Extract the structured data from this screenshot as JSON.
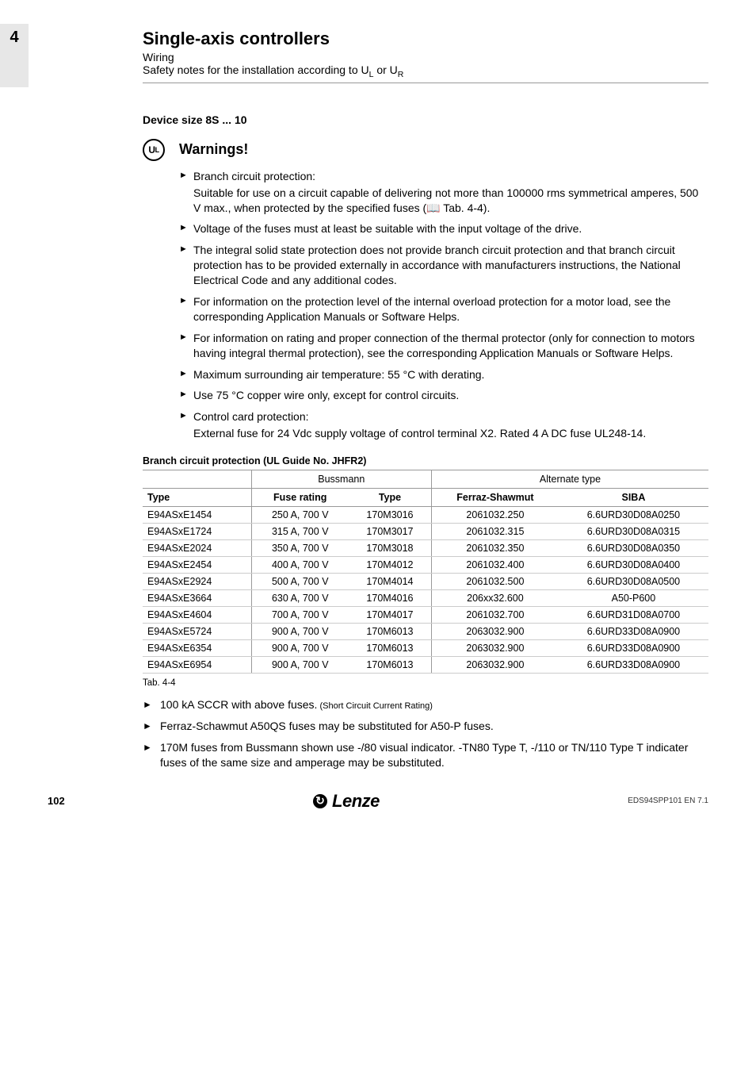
{
  "chapter_number": "4",
  "header": {
    "title": "Single-axis controllers",
    "sub1": "Wiring",
    "sub2_prefix": "Safety notes for the installation according to U",
    "sub2_sub1": "L",
    "sub2_mid": " or U",
    "sub2_sub2": "R"
  },
  "device_size": "Device size 8S ... 10",
  "ul_badge": "UL",
  "warnings_title": "Warnings!",
  "bullets": [
    {
      "text": "Branch circuit protection:",
      "sub": "Suitable for use on a circuit capable of delivering not more than 100000 rms symmetrical amperes, 500 V max., when protected by the specified fuses (📖 Tab. 4-4)."
    },
    {
      "text": "Voltage of the fuses must at least be suitable with the input voltage of the drive."
    },
    {
      "text": "The integral solid state protection does not provide branch circuit protection and that branch circuit protection has to be provided externally in accordance with manufacturers instructions, the National Electrical Code and any additional codes."
    },
    {
      "text": "For information on the protection level of the internal overload protection for a motor load, see the corresponding Application Manuals or Software Helps."
    },
    {
      "text": "For information on rating and proper connection of the thermal protector (only for connection to motors having integral thermal protection), see the corresponding Application Manuals or Software Helps."
    },
    {
      "text": "Maximum surrounding air temperature: 55 °C with derating."
    },
    {
      "text": "Use 75 °C copper wire only, except for control circuits."
    },
    {
      "text": "Control card protection:",
      "sub": "External fuse for 24 Vdc supply voltage of control terminal X2. Rated 4 A DC fuse UL248-14."
    }
  ],
  "table": {
    "title": "Branch circuit protection (UL Guide No. JHFR2)",
    "group_left": "Bussmann",
    "group_right": "Alternate type",
    "col_type": "Type",
    "col_rating": "Fuse rating",
    "col_btype": "Type",
    "col_ferraz": "Ferraz-Shawmut",
    "col_siba": "SIBA",
    "rows": [
      {
        "type": "E94ASxE1454",
        "rating": "250 A, 700 V",
        "btype": "170M3016",
        "ferraz": "2061032.250",
        "siba": "6.6URD30D08A0250"
      },
      {
        "type": "E94ASxE1724",
        "rating": "315 A, 700 V",
        "btype": "170M3017",
        "ferraz": "2061032.315",
        "siba": "6.6URD30D08A0315"
      },
      {
        "type": "E94ASxE2024",
        "rating": "350 A, 700 V",
        "btype": "170M3018",
        "ferraz": "2061032.350",
        "siba": "6.6URD30D08A0350"
      },
      {
        "type": "E94ASxE2454",
        "rating": "400 A, 700 V",
        "btype": "170M4012",
        "ferraz": "2061032.400",
        "siba": "6.6URD30D08A0400"
      },
      {
        "type": "E94ASxE2924",
        "rating": "500 A, 700 V",
        "btype": "170M4014",
        "ferraz": "2061032.500",
        "siba": "6.6URD30D08A0500"
      },
      {
        "type": "E94ASxE3664",
        "rating": "630 A, 700 V",
        "btype": "170M4016",
        "ferraz": "206xx32.600",
        "siba": "A50-P600"
      },
      {
        "type": "E94ASxE4604",
        "rating": "700 A, 700 V",
        "btype": "170M4017",
        "ferraz": "2061032.700",
        "siba": "6.6URD31D08A0700"
      },
      {
        "type": "E94ASxE5724",
        "rating": "900 A, 700 V",
        "btype": "170M6013",
        "ferraz": "2063032.900",
        "siba": "6.6URD33D08A0900"
      },
      {
        "type": "E94ASxE6354",
        "rating": "900 A, 700 V",
        "btype": "170M6013",
        "ferraz": "2063032.900",
        "siba": "6.6URD33D08A0900"
      },
      {
        "type": "E94ASxE6954",
        "rating": "900 A, 700 V",
        "btype": "170M6013",
        "ferraz": "2063032.900",
        "siba": "6.6URD33D08A0900"
      }
    ],
    "caption": "Tab. 4-4"
  },
  "notes": {
    "n1a": "100 kA SCCR with above fuses.",
    "n1b": " (Short Circuit Current Rating)",
    "n2": "Ferraz-Schawmut A50QS fuses may be substituted for A50-P fuses.",
    "n3": "170M fuses from Bussmann shown use -/80 visual indicator. -TN80 Type T, -/110 or TN/110 Type T indicater fuses of the same size and amperage may be substituted."
  },
  "footer": {
    "page": "102",
    "brand": "Lenze",
    "doc": "EDS94SPP101 EN 7.1"
  }
}
